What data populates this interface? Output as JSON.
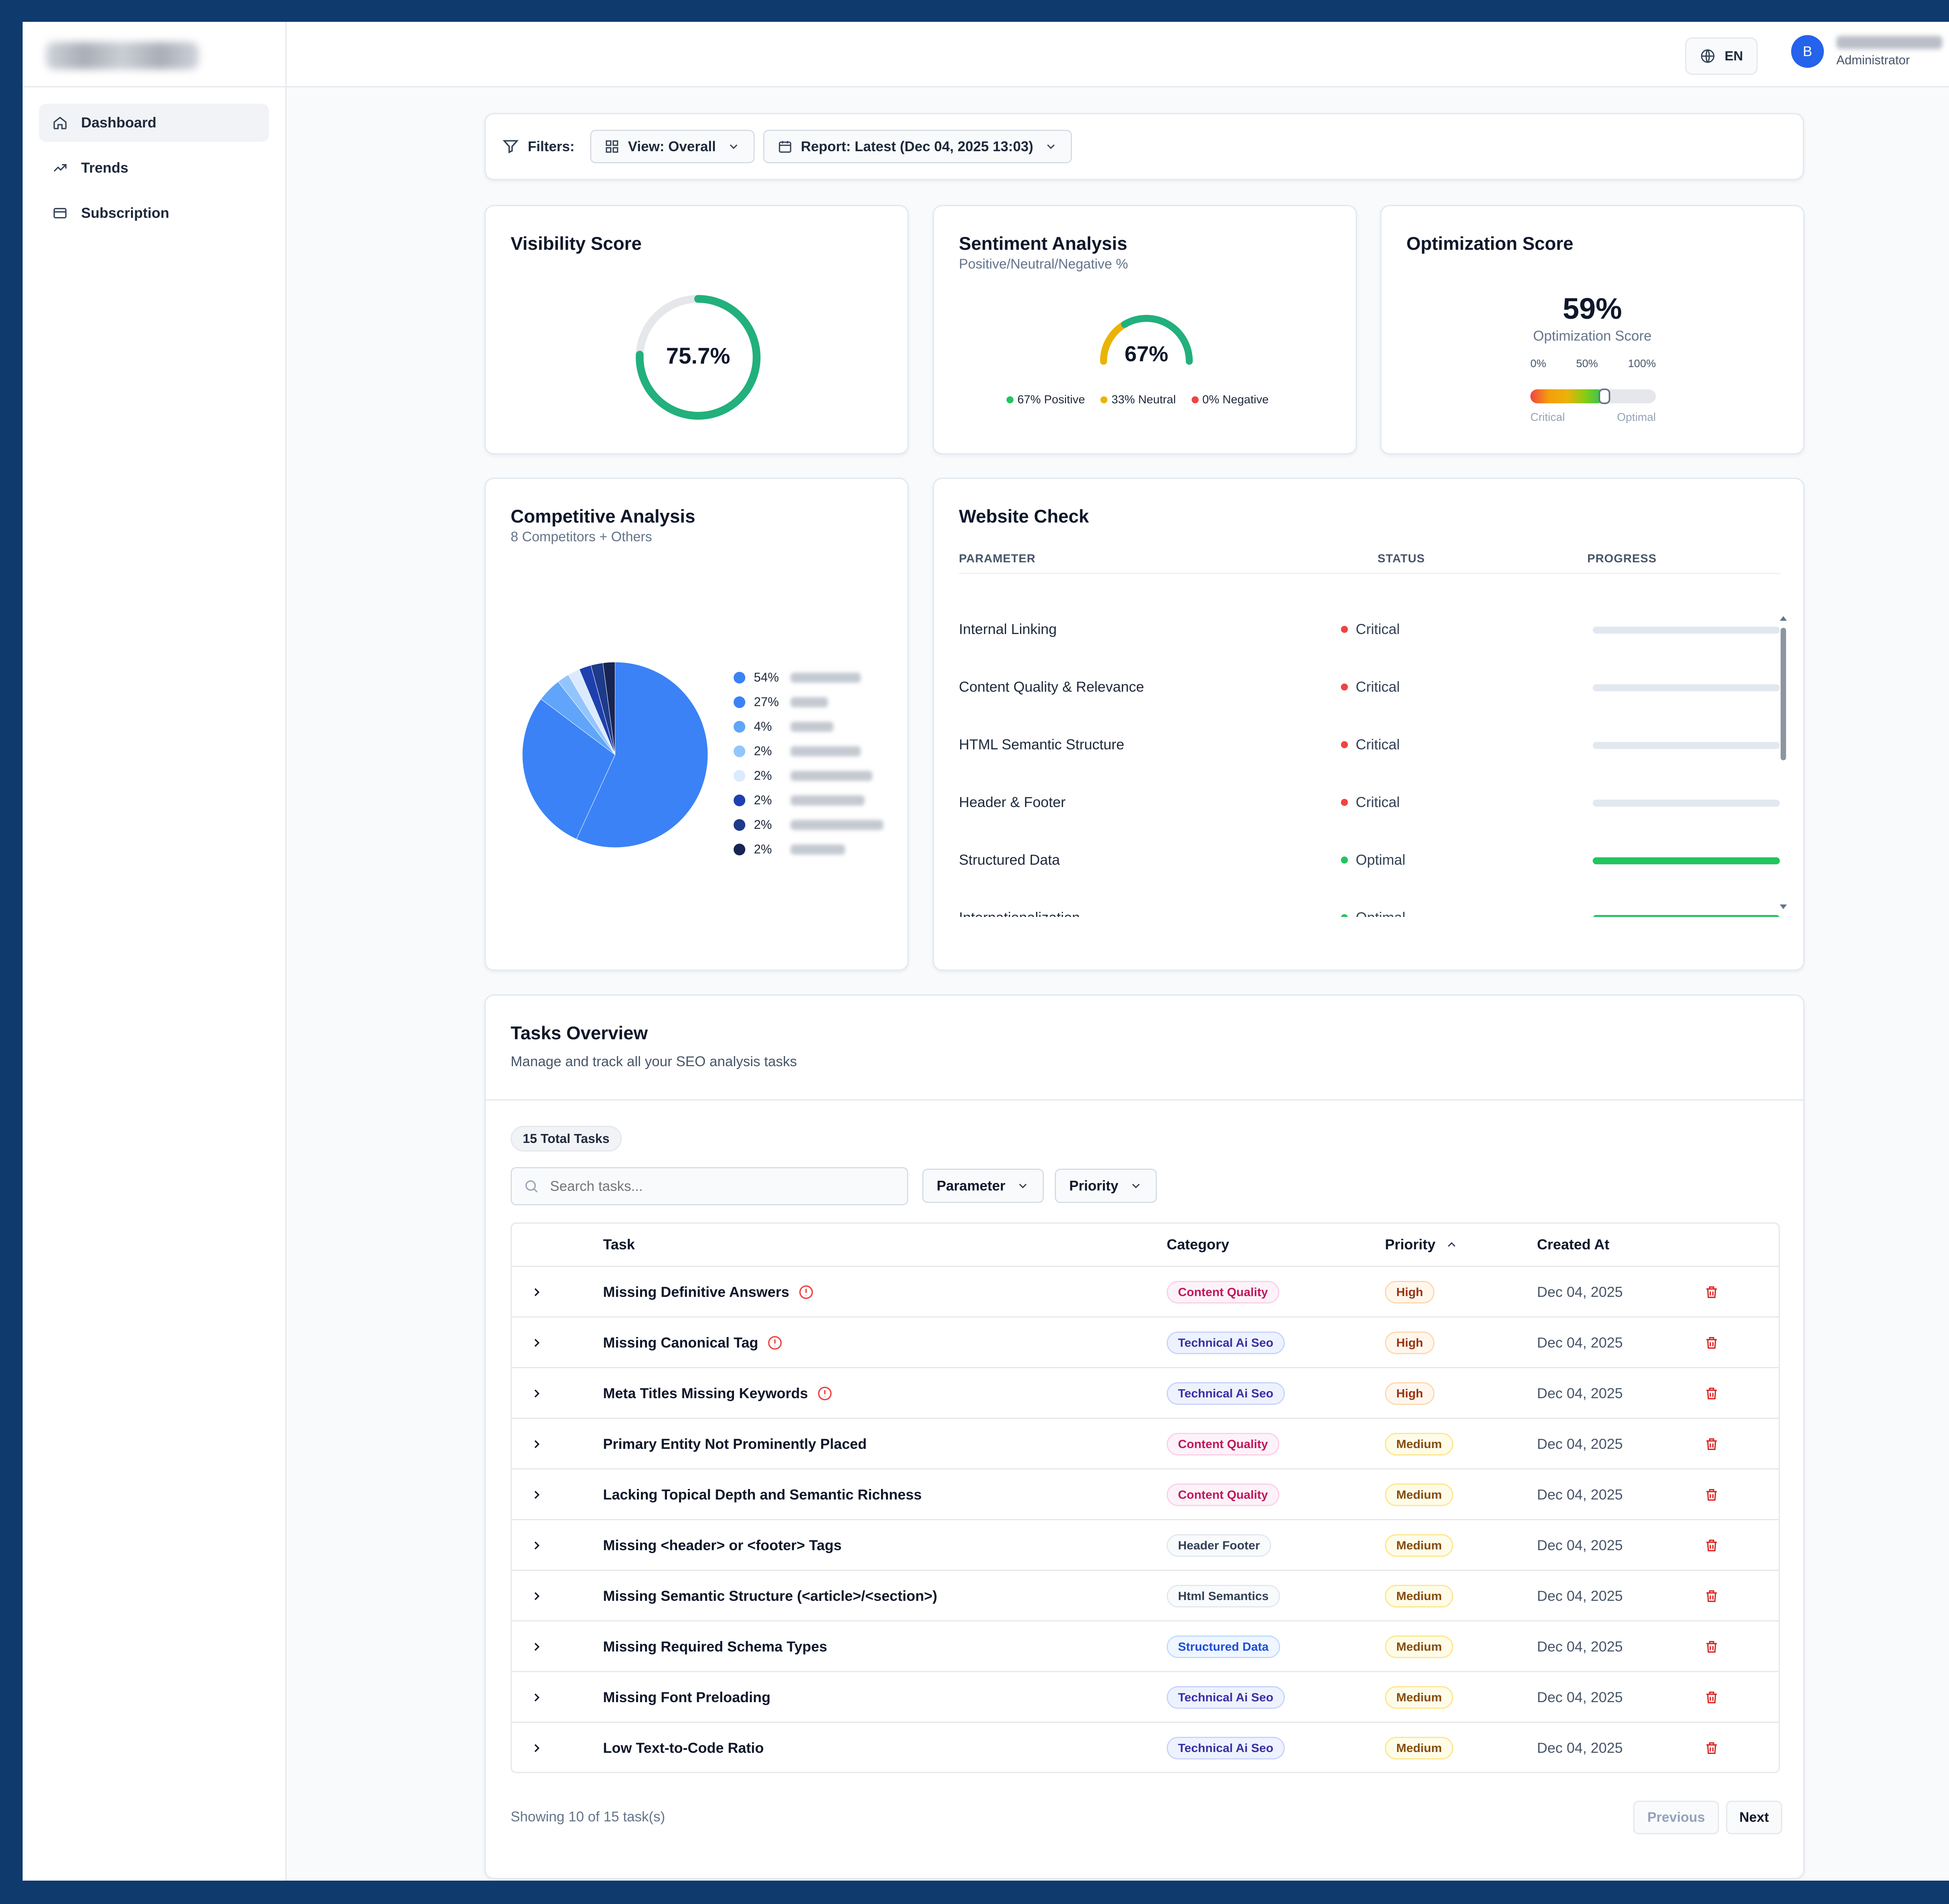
{
  "sidebar": {
    "items": [
      {
        "label": "Dashboard",
        "icon": "home-icon"
      },
      {
        "label": "Trends",
        "icon": "trend-icon"
      },
      {
        "label": "Subscription",
        "icon": "card-icon"
      }
    ]
  },
  "header": {
    "language": "EN",
    "user_initial": "B",
    "user_role": "Administrator"
  },
  "filters": {
    "label": "Filters:",
    "view": "View: Overall",
    "report": "Report: Latest (Dec 04, 2025 13:03)"
  },
  "visibility": {
    "title": "Visibility Score",
    "value_label": "75.7%",
    "value": 75.7
  },
  "sentiment": {
    "title": "Sentiment Analysis",
    "subtitle": "Positive/Neutral/Negative %",
    "value_label": "67%",
    "positive": 67,
    "neutral": 33,
    "negative": 0,
    "legend": [
      "67% Positive",
      "33% Neutral",
      "0% Negative"
    ]
  },
  "optimization": {
    "title": "Optimization Score",
    "value_label": "59%",
    "caption": "Optimization Score",
    "value": 59,
    "ticks": [
      "0%",
      "50%",
      "100%"
    ],
    "low_label": "Critical",
    "high_label": "Optimal"
  },
  "competitive": {
    "title": "Competitive Analysis",
    "subtitle": "8 Competitors + Others"
  },
  "chart_data": {
    "type": "pie",
    "values": [
      54,
      27,
      4,
      2,
      2,
      2,
      2,
      2
    ],
    "labels": [
      "54%",
      "27%",
      "4%",
      "2%",
      "2%",
      "2%",
      "2%",
      "2%"
    ],
    "colors": [
      "#3b82f6",
      "#3b82f6",
      "#60a5fa",
      "#93c5fd",
      "#dbeafe",
      "#1e40af",
      "#1e3a8a",
      "#172554"
    ]
  },
  "website_check": {
    "title": "Website Check",
    "columns": [
      "PARAMETER",
      "STATUS",
      "PROGRESS"
    ],
    "rows": [
      {
        "parameter": "Internal Linking",
        "status": "Critical",
        "progress": 0
      },
      {
        "parameter": "Content Quality & Relevance",
        "status": "Critical",
        "progress": 0
      },
      {
        "parameter": "HTML Semantic Structure",
        "status": "Critical",
        "progress": 0
      },
      {
        "parameter": "Header & Footer",
        "status": "Critical",
        "progress": 0
      },
      {
        "parameter": "Structured Data",
        "status": "Optimal",
        "progress": 100
      },
      {
        "parameter": "Internationalization",
        "status": "Optimal",
        "progress": 100
      }
    ]
  },
  "tasks": {
    "title": "Tasks Overview",
    "subtitle": "Manage and track all your SEO analysis tasks",
    "total": "15 Total Tasks",
    "search_placeholder": "Search tasks...",
    "filter_parameter": "Parameter",
    "filter_priority": "Priority",
    "columns": [
      "Task",
      "Category",
      "Priority",
      "Created At"
    ],
    "rows": [
      {
        "task": "Missing Definitive Answers",
        "alert": true,
        "category": "Content Quality",
        "priority": "High",
        "date": "Dec 04, 2025"
      },
      {
        "task": "Missing Canonical Tag",
        "alert": true,
        "category": "Technical Ai Seo",
        "priority": "High",
        "date": "Dec 04, 2025"
      },
      {
        "task": "Meta Titles Missing Keywords",
        "alert": true,
        "category": "Technical Ai Seo",
        "priority": "High",
        "date": "Dec 04, 2025"
      },
      {
        "task": "Primary Entity Not Prominently Placed",
        "alert": false,
        "category": "Content Quality",
        "priority": "Medium",
        "date": "Dec 04, 2025"
      },
      {
        "task": "Lacking Topical Depth and Semantic Richness",
        "alert": false,
        "category": "Content Quality",
        "priority": "Medium",
        "date": "Dec 04, 2025"
      },
      {
        "task": "Missing <header> or <footer> Tags",
        "alert": false,
        "category": "Header Footer",
        "priority": "Medium",
        "date": "Dec 04, 2025"
      },
      {
        "task": "Missing Semantic Structure (<article>/<section>)",
        "alert": false,
        "category": "Html Semantics",
        "priority": "Medium",
        "date": "Dec 04, 2025"
      },
      {
        "task": "Missing Required Schema Types",
        "alert": false,
        "category": "Structured Data",
        "priority": "Medium",
        "date": "Dec 04, 2025"
      },
      {
        "task": "Missing Font Preloading",
        "alert": false,
        "category": "Technical Ai Seo",
        "priority": "Medium",
        "date": "Dec 04, 2025"
      },
      {
        "task": "Low Text-to-Code Ratio",
        "alert": false,
        "category": "Technical Ai Seo",
        "priority": "Medium",
        "date": "Dec 04, 2025"
      }
    ],
    "showing": "Showing 10 of 15 task(s)",
    "prev": "Previous",
    "next": "Next"
  }
}
